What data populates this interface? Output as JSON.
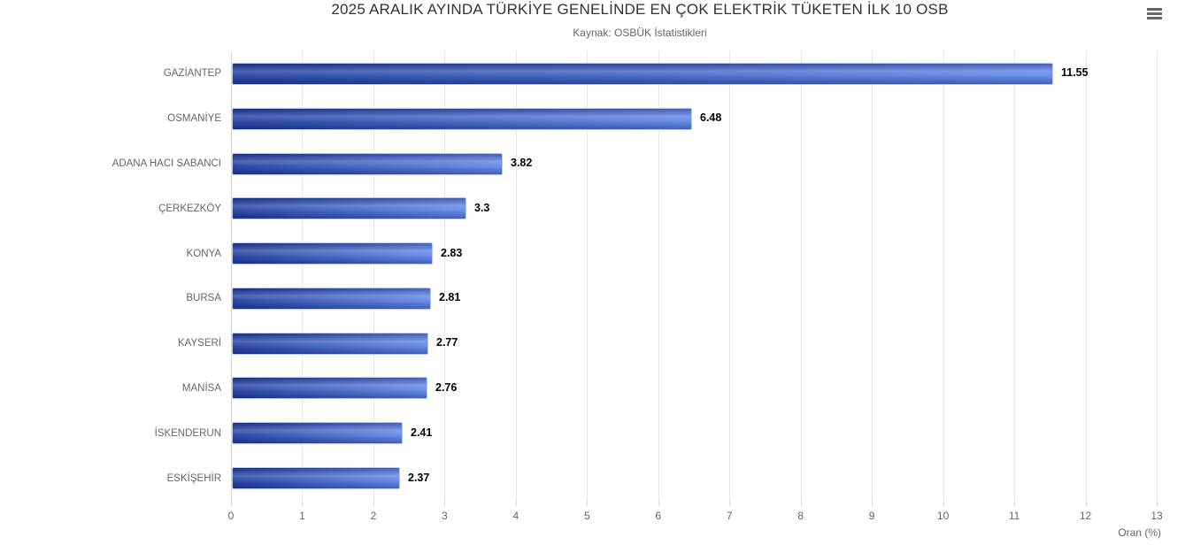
{
  "chart_data": {
    "type": "bar",
    "orientation": "horizontal",
    "title": "2025 ARALIK AYINDA TÜRKİYE GENELİNDE EN ÇOK ELEKTRİK TÜKETEN İLK 10 OSB",
    "subtitle": "Kaynak: OSBÜK İstatistikleri",
    "categories": [
      "GAZİANTEP",
      "OSMANİYE",
      "ADANA HACI SABANCI",
      "ÇERKEZKÖY",
      "KONYA",
      "BURSA",
      "KAYSERİ",
      "MANİSA",
      "İSKENDERUN",
      "ESKİŞEHİR"
    ],
    "values": [
      11.55,
      6.48,
      3.82,
      3.3,
      2.83,
      2.81,
      2.77,
      2.76,
      2.41,
      2.37
    ],
    "value_labels": [
      "11.55",
      "6.48",
      "3.82",
      "3.3",
      "2.83",
      "2.81",
      "2.77",
      "2.76",
      "2.41",
      "2.37"
    ],
    "xlabel": "Oran (%)",
    "ylabel": "",
    "xlim": [
      0,
      13
    ],
    "x_ticks": [
      0,
      1,
      2,
      3,
      4,
      5,
      6,
      7,
      8,
      9,
      10,
      11,
      12,
      13
    ],
    "grid": true,
    "legend": "none"
  },
  "icons": {
    "context_menu": "hamburger-icon"
  },
  "colors": {
    "background": "#ffffff",
    "bar_gradient_start": "#1c3a9e",
    "bar_gradient_end": "#5e84e8",
    "bar_border": "#b7c7ef",
    "gridline": "#e6e6e6",
    "axis_line": "#ccd6eb",
    "axis_label": "#666666",
    "category_label": "#666666",
    "title_color": "#333333",
    "subtitle_color": "#666666",
    "value_label_color": "#000000",
    "menu_icon": "#666666"
  }
}
